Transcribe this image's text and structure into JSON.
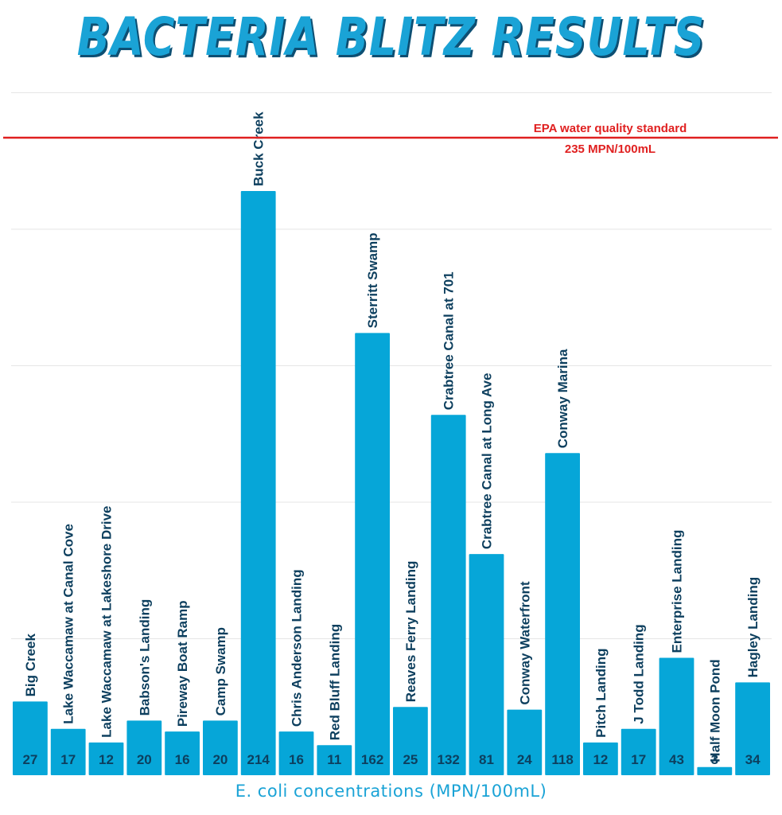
{
  "title": "BACTERIA BLITZ RESULTS",
  "colors": {
    "bar": "#06a6d8",
    "title": "#1aa3d6",
    "title_shadow": "#0d4f73",
    "label": "#0d3f5e",
    "value_label": "#0d3f5e",
    "threshold": "#e02020",
    "grid": "#e6e6e6"
  },
  "chart_data": {
    "type": "bar",
    "xlabel": "E. coli concentrations (MPN/100mL)",
    "ylabel": "",
    "ylim": [
      0,
      250
    ],
    "grid": true,
    "categories": [
      "Big Creek",
      "Lake Waccamaw at Canal Cove",
      "Lake Waccamaw at Lakeshore Drive",
      "Babson's Landing",
      "Pireway Boat Ramp",
      "Camp Swamp",
      "Buck Creek",
      "Chris Anderson Landing",
      "Red Bluff Landing",
      "Sterritt Swamp",
      "Reaves Ferry Landing",
      "Crabtree Canal at 701",
      "Crabtree Canal at Long Ave",
      "Conway Waterfront",
      "Conway Marina",
      "Pitch Landing",
      "J Todd Landing",
      "Enterprise Landing",
      "Half Moon Pond",
      "Hagley Landing"
    ],
    "values": [
      27,
      17,
      12,
      20,
      16,
      20,
      214,
      16,
      11,
      162,
      25,
      132,
      81,
      24,
      118,
      12,
      17,
      43,
      3,
      34
    ],
    "value_labels": [
      "27",
      "17",
      "12",
      "20",
      "16",
      "20",
      "214",
      "16",
      "11",
      "162",
      "25",
      "132",
      "81",
      "24",
      "118",
      "12",
      "17",
      "43",
      "3",
      "34"
    ],
    "reference_line": {
      "value": 235,
      "label": "EPA water quality standard",
      "sublabel": "235 MPN/100mL"
    }
  }
}
